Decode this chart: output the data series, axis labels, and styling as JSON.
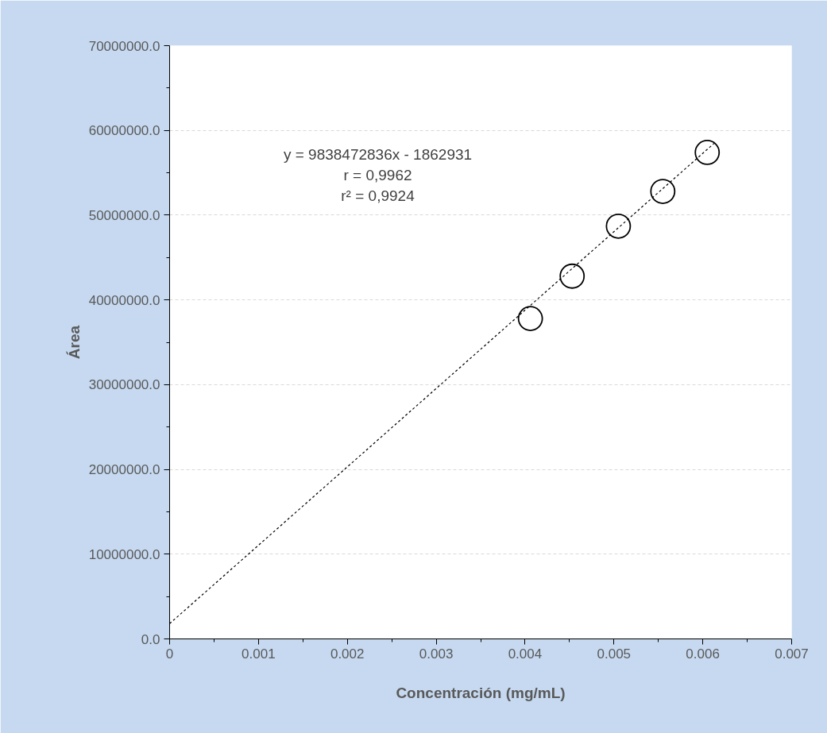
{
  "chart_data": {
    "type": "scatter",
    "xlabel": "Concentración (mg/mL)",
    "ylabel": "Área",
    "series": [
      {
        "color": "#000000",
        "x": [
          0.00406,
          0.00453,
          0.00505,
          0.00555,
          0.00605
        ],
        "values": [
          37800000,
          42800000,
          48700000,
          52800000,
          57400000
        ],
        "marker": "circle"
      },
      {
        "type": "line",
        "color": "#000000",
        "x": [
          0,
          0.00613
        ],
        "values": [
          1800000,
          58500000
        ],
        "line_style": "dotted"
      }
    ],
    "annotations": [
      "y = 9838472836x - 1862931",
      "r = 0,9962",
      "r² = 0,9924"
    ],
    "xlim": [
      0,
      0.007
    ],
    "xticks": [
      0,
      0.001,
      0.002,
      0.003,
      0.004,
      0.005,
      0.006,
      0.007
    ],
    "ylim": [
      0,
      70000000
    ],
    "yticks": [
      {
        "value": 0,
        "label": "0.0"
      },
      {
        "value": 10000000,
        "label": "10000000.0"
      },
      {
        "value": 20000000,
        "label": "20000000.0"
      },
      {
        "value": 30000000,
        "label": "30000000.0"
      },
      {
        "value": 40000000,
        "label": "40000000.0"
      },
      {
        "value": 50000000,
        "label": "50000000.0"
      },
      {
        "value": 60000000,
        "label": "60000000.0"
      },
      {
        "value": 70000000,
        "label": "70000000.0"
      }
    ],
    "grid": "y"
  }
}
